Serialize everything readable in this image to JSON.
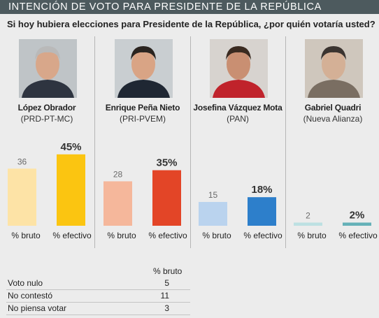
{
  "header": {
    "title": "INTENCIÓN DE VOTO PARA PRESIDENTE DE LA REPÚBLICA",
    "question": "Si hoy hubiera elecciones para Presidente de la República, ¿por quién votaría usted?"
  },
  "chart_data": {
    "type": "bar",
    "title": "INTENCIÓN DE VOTO PARA PRESIDENTE DE LA REPÚBLICA",
    "categories": [
      "% bruto",
      "% efectivo"
    ],
    "ylim": [
      0,
      50
    ],
    "grid": false,
    "candidates": [
      {
        "name": "López Obrador",
        "party": "(PRD-PT-MC)",
        "bruto": 36,
        "efectivo": 45,
        "bruto_label": "36",
        "efectivo_label": "45%",
        "color_light": "#fde3a6",
        "color_dark": "#fbc511"
      },
      {
        "name": "Enrique Peña Nieto",
        "party": "(PRI-PVEM)",
        "bruto": 28,
        "efectivo": 35,
        "bruto_label": "28",
        "efectivo_label": "35%",
        "color_light": "#f5b79b",
        "color_dark": "#e34527"
      },
      {
        "name": "Josefina Vázquez Mota",
        "party": "(PAN)",
        "bruto": 15,
        "efectivo": 18,
        "bruto_label": "15",
        "efectivo_label": "18%",
        "color_light": "#bad3ee",
        "color_dark": "#2d7fcb"
      },
      {
        "name": "Gabriel Quadri",
        "party": "(Nueva Alianza)",
        "bruto": 2,
        "efectivo": 2,
        "bruto_label": "2",
        "efectivo_label": "2%",
        "color_light": "#bde0e2",
        "color_dark": "#65b1b8"
      }
    ]
  },
  "table": {
    "header": "% bruto",
    "rows": [
      {
        "label": "Voto nulo",
        "value": "5"
      },
      {
        "label": "No contestó",
        "value": "11"
      },
      {
        "label": "No piensa votar",
        "value": "3"
      }
    ]
  },
  "colors": {
    "title_bar": "#4d5a5e",
    "background": "#ececec"
  }
}
